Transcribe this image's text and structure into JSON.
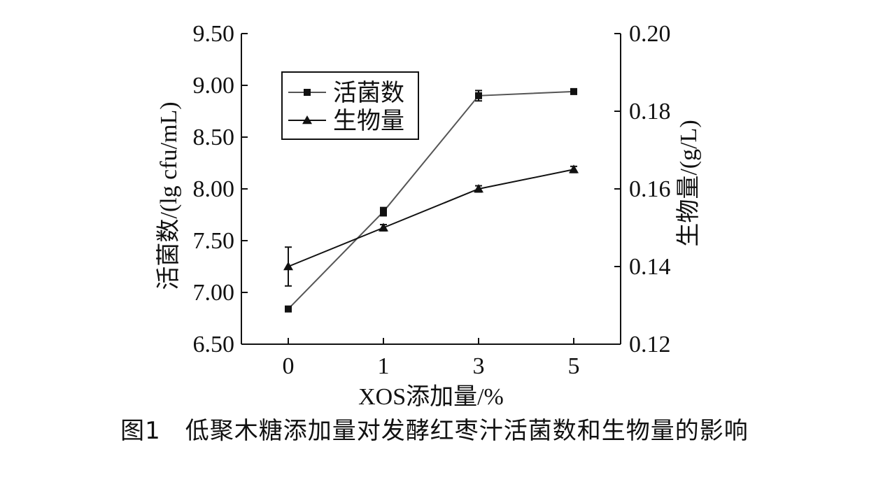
{
  "caption": "图1　低聚木糖添加量对发酵红枣汁活菌数和生物量的影响",
  "chart_data": {
    "type": "line",
    "categories": [
      "0",
      "1",
      "3",
      "5"
    ],
    "xlabel": "XOS添加量/%",
    "ylabel": "活菌数/(lg cfu/mL)",
    "y2label": "生物量/(g/L)",
    "ylim": [
      6.5,
      9.5
    ],
    "y2lim": [
      0.12,
      0.2
    ],
    "yticks": [
      "6.50",
      "7.00",
      "7.50",
      "8.00",
      "8.50",
      "9.00",
      "9.50"
    ],
    "y2ticks": [
      "0.12",
      "0.14",
      "0.16",
      "0.18",
      "0.20"
    ],
    "legend_position": "top-left",
    "grid": false,
    "series": [
      {
        "name": "活菌数",
        "axis": "left",
        "marker": "square",
        "color": "#555555",
        "values": [
          6.84,
          7.78,
          8.9,
          8.94
        ],
        "errors": [
          0.02,
          0.04,
          0.05,
          0.02
        ]
      },
      {
        "name": "生物量",
        "axis": "right",
        "marker": "triangle",
        "color": "#111111",
        "values": [
          0.14,
          0.15,
          0.16,
          0.165
        ],
        "errors": [
          0.005,
          0.0008,
          0.0008,
          0.0008
        ]
      }
    ]
  }
}
